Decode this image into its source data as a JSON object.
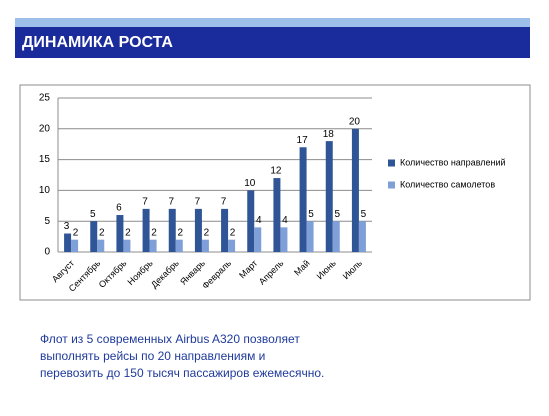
{
  "header": {
    "title": "ДИНАМИКА РОСТА"
  },
  "chart_data": {
    "type": "bar",
    "categories": [
      "Август",
      "Сентябрь",
      "Октябрь",
      "Ноябрь",
      "Декабрь",
      "Январь",
      "Февраль",
      "Март",
      "Апрель",
      "Май",
      "Июнь",
      "Июль"
    ],
    "series": [
      {
        "name": "Количество направлений",
        "color": "#2f5597",
        "values": [
          3,
          5,
          6,
          7,
          7,
          7,
          7,
          10,
          12,
          17,
          18,
          20
        ]
      },
      {
        "name": "Количество самолетов",
        "color": "#7f9fd8",
        "values": [
          2,
          2,
          2,
          2,
          2,
          2,
          2,
          4,
          4,
          5,
          5,
          5
        ]
      }
    ],
    "ylim": [
      0,
      25
    ],
    "yticks": [
      0,
      5,
      10,
      15,
      20,
      25
    ],
    "grid": true,
    "legend": "right"
  },
  "caption": {
    "lines": [
      "Флот из 5 современных Airbus A320 позволяет",
      "выполнять рейсы по 20 направлениям и",
      "перевозить до 150 тысяч пассажиров ежемесячно."
    ]
  }
}
